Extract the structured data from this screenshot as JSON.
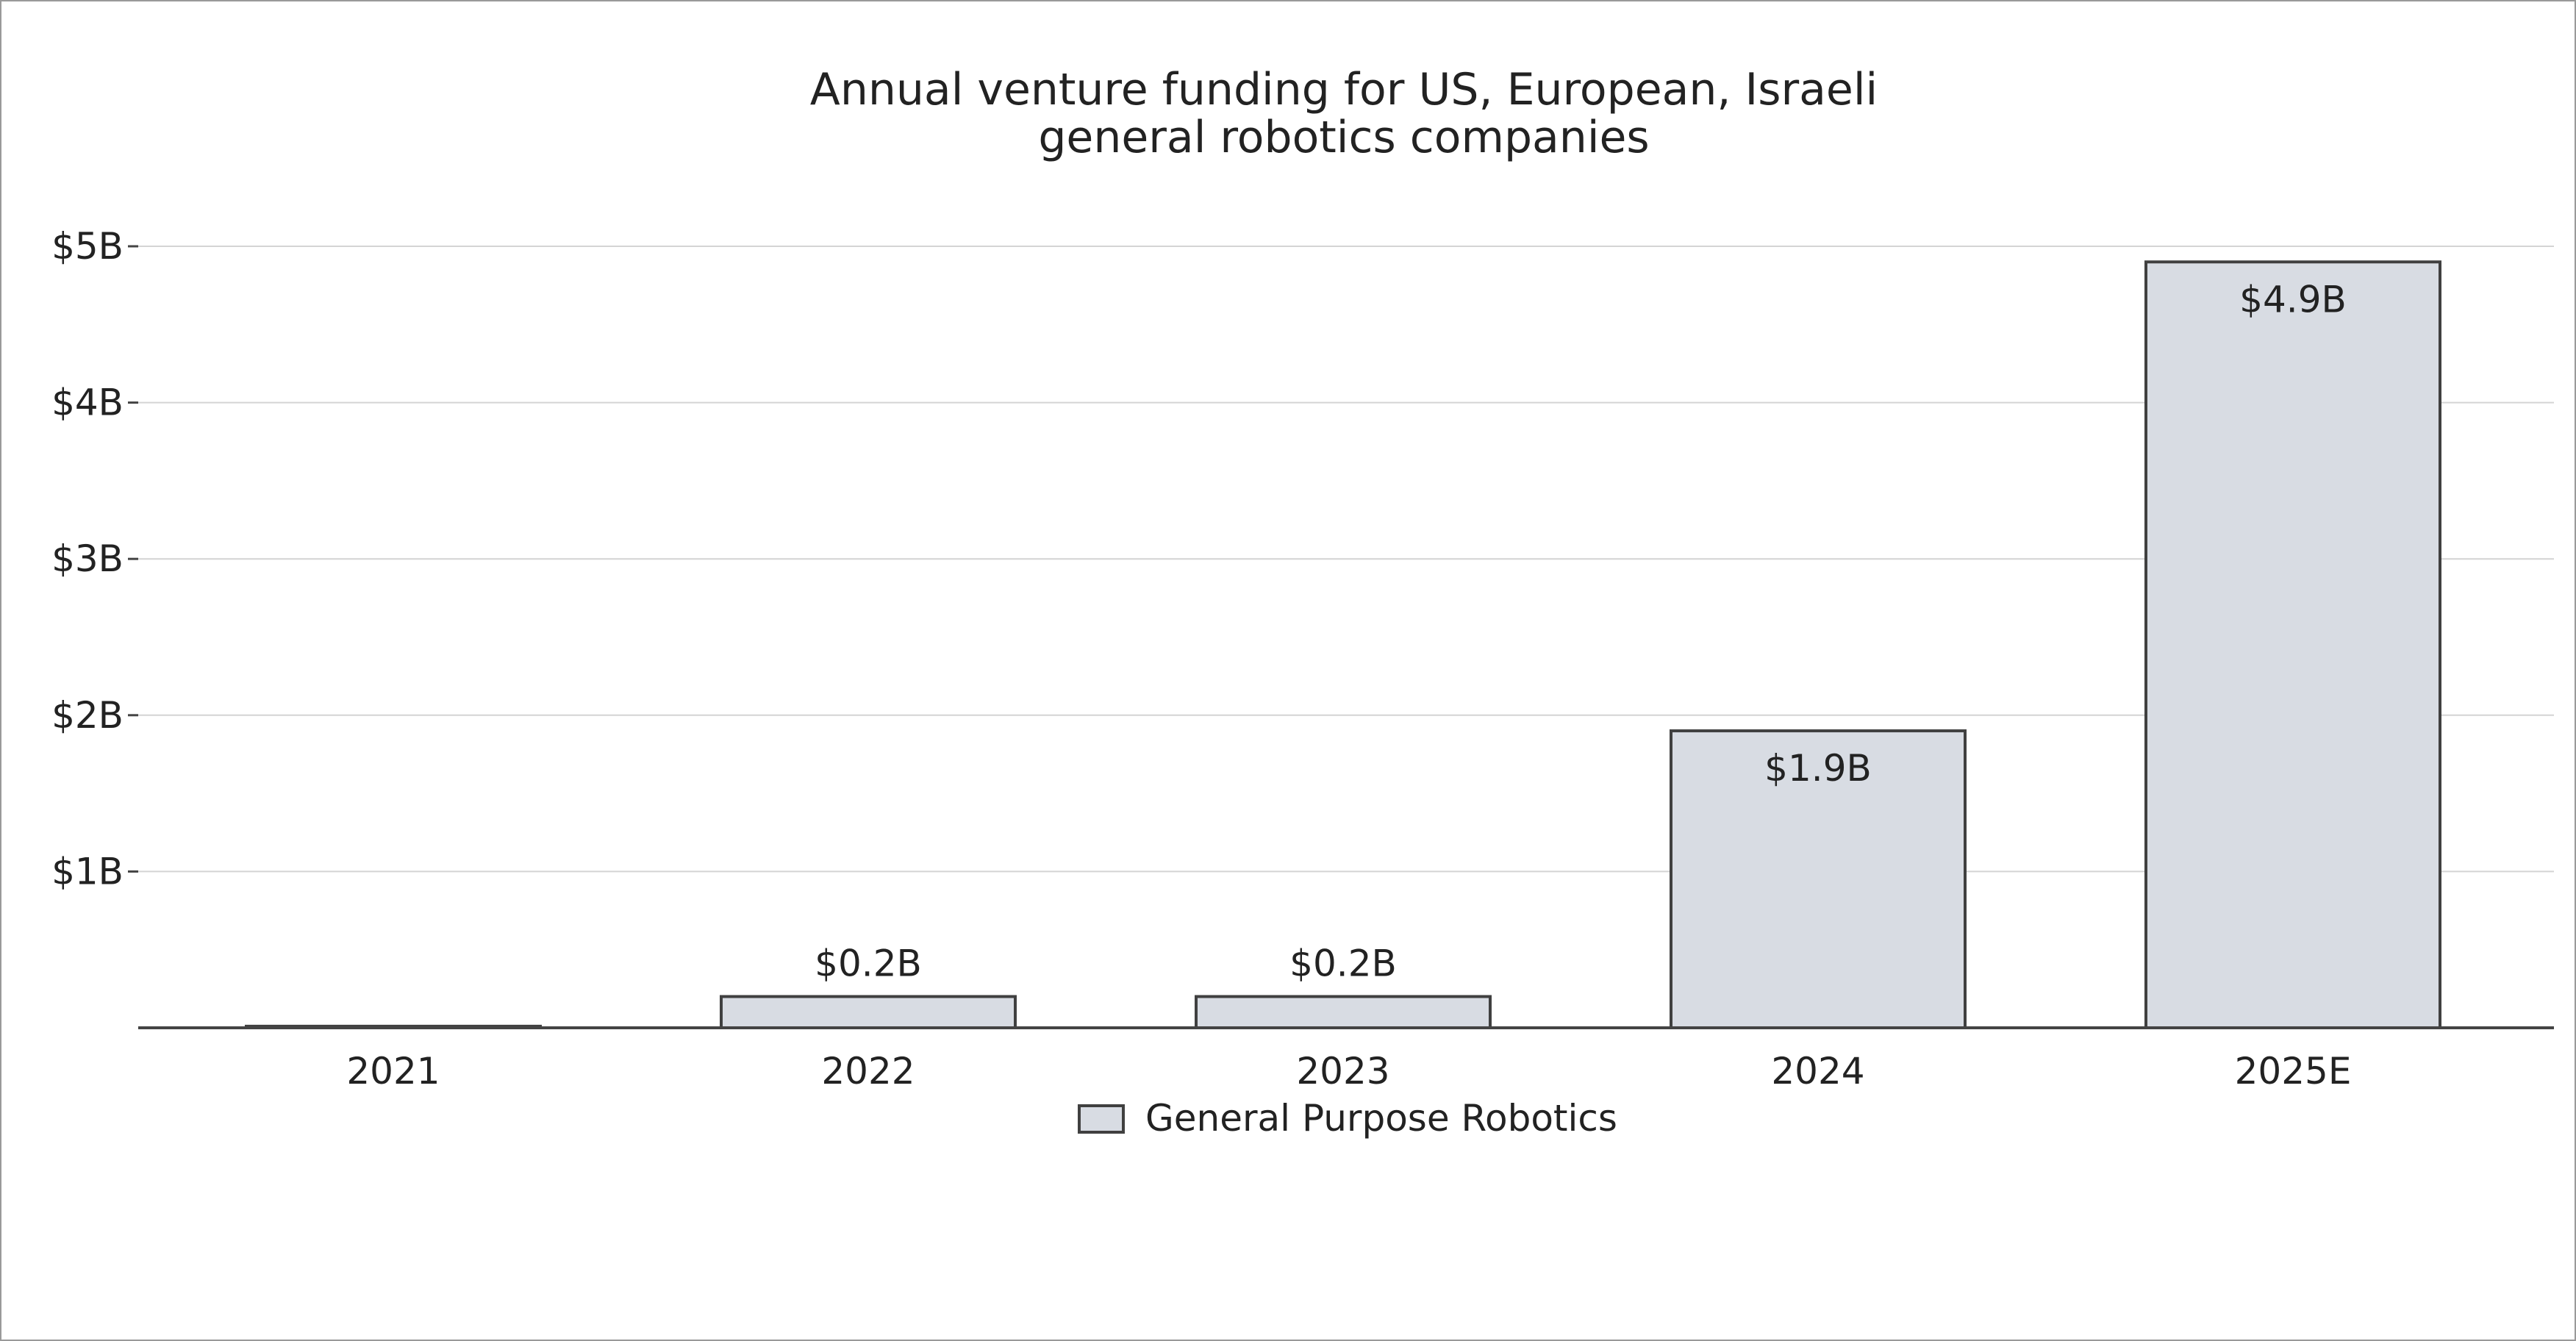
{
  "chart_data": {
    "type": "bar",
    "title_lines": [
      "Annual venture funding for US, European, Israeli",
      "general robotics companies"
    ],
    "categories": [
      "2021",
      "2022",
      "2023",
      "2024",
      "2025E"
    ],
    "series": [
      {
        "name": "General Purpose Robotics",
        "values": [
          0.01,
          0.2,
          0.2,
          1.9,
          4.9
        ],
        "data_labels": [
          "",
          "$0.2B",
          "$0.2B",
          "$1.9B",
          "$4.9B"
        ],
        "label_position": [
          "",
          "above",
          "above",
          "inside",
          "inside"
        ]
      }
    ],
    "y_ticks": [
      1,
      2,
      3,
      4,
      5
    ],
    "y_tick_labels": [
      "$1B",
      "$2B",
      "$3B",
      "$4B",
      "$5B"
    ],
    "ylim": [
      0,
      5.5
    ],
    "xlabel": "",
    "ylabel": "",
    "grid": true,
    "legend": "bottom-center",
    "colors": {
      "bar_fill": "#d8dce3",
      "bar_stroke": "#404040",
      "grid": "#d4d4d4",
      "axis": "#444444",
      "text": "#222222"
    }
  }
}
